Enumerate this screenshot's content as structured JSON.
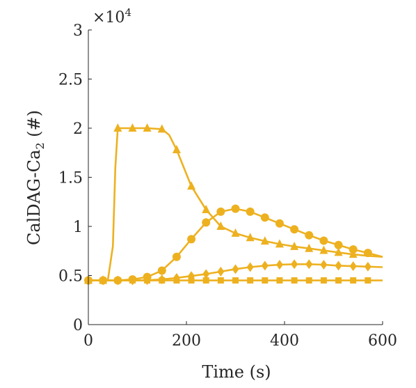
{
  "chart_data": {
    "type": "line",
    "xlabel": "Time (s)",
    "ylabel_main": "CalDAG-Ca",
    "ylabel_sub": "2",
    "ylabel_suffix": " (#)",
    "exponent_prefix": "×10",
    "exponent_power": "4",
    "xlim": [
      0,
      600
    ],
    "ylim": [
      0,
      30000
    ],
    "xticks": [
      0,
      200,
      400,
      600
    ],
    "xtick_labels": [
      "0",
      "200",
      "400",
      "600"
    ],
    "yticks": [
      0,
      5000,
      10000,
      15000,
      20000,
      25000,
      30000
    ],
    "ytick_labels": [
      "0",
      "0.5",
      "1",
      "1.5",
      "2",
      "2.5",
      "3"
    ],
    "color": "#EDB120",
    "grid": false,
    "series": [
      {
        "marker": "triangle",
        "x": [
          0,
          30,
          40,
          50,
          55,
          60,
          90,
          120,
          150,
          165,
          180,
          210,
          240,
          270,
          300,
          330,
          360,
          390,
          420,
          450,
          480,
          510,
          540,
          570,
          600
        ],
        "y": [
          4500,
          4500,
          4600,
          8000,
          16000,
          20000,
          20000,
          20000,
          19900,
          19300,
          17800,
          14100,
          11700,
          10000,
          9300,
          8850,
          8500,
          8200,
          7950,
          7750,
          7550,
          7350,
          7150,
          7000,
          6900
        ],
        "marker_x": [
          0,
          30,
          60,
          90,
          120,
          150,
          180,
          210,
          240,
          270,
          300,
          330,
          360,
          390,
          420,
          450,
          480,
          510,
          540
        ]
      },
      {
        "marker": "circle",
        "x": [
          0,
          60,
          90,
          120,
          150,
          180,
          210,
          240,
          270,
          300,
          330,
          360,
          390,
          420,
          450,
          480,
          510,
          540,
          570,
          600
        ],
        "y": [
          4500,
          4500,
          4600,
          4850,
          5500,
          6900,
          8700,
          10400,
          11500,
          11800,
          11500,
          10900,
          10300,
          9700,
          9100,
          8550,
          8100,
          7650,
          7300,
          6900
        ],
        "marker_x": [
          0,
          30,
          60,
          90,
          120,
          150,
          180,
          210,
          240,
          270,
          300,
          330,
          360,
          390,
          420,
          450,
          480,
          510,
          540,
          570
        ]
      },
      {
        "marker": "diamond",
        "x": [
          0,
          90,
          120,
          150,
          180,
          210,
          240,
          270,
          300,
          330,
          360,
          390,
          420,
          450,
          480,
          510,
          540,
          570,
          600
        ],
        "y": [
          4500,
          4500,
          4520,
          4600,
          4750,
          4950,
          5150,
          5400,
          5650,
          5850,
          6000,
          6100,
          6150,
          6150,
          6100,
          6000,
          5950,
          5900,
          5850
        ],
        "marker_x": [
          0,
          30,
          60,
          90,
          120,
          150,
          180,
          210,
          240,
          270,
          300,
          330,
          360,
          390,
          420,
          450,
          480,
          510,
          540,
          570
        ]
      },
      {
        "marker": "square",
        "x": [
          0,
          150,
          300,
          450,
          600
        ],
        "y": [
          4500,
          4500,
          4500,
          4500,
          4500
        ],
        "marker_x": [
          0,
          30,
          60,
          90,
          120,
          150,
          180,
          210,
          240,
          270,
          300,
          330,
          360,
          390,
          420,
          450,
          480,
          510,
          540,
          570
        ]
      }
    ]
  }
}
